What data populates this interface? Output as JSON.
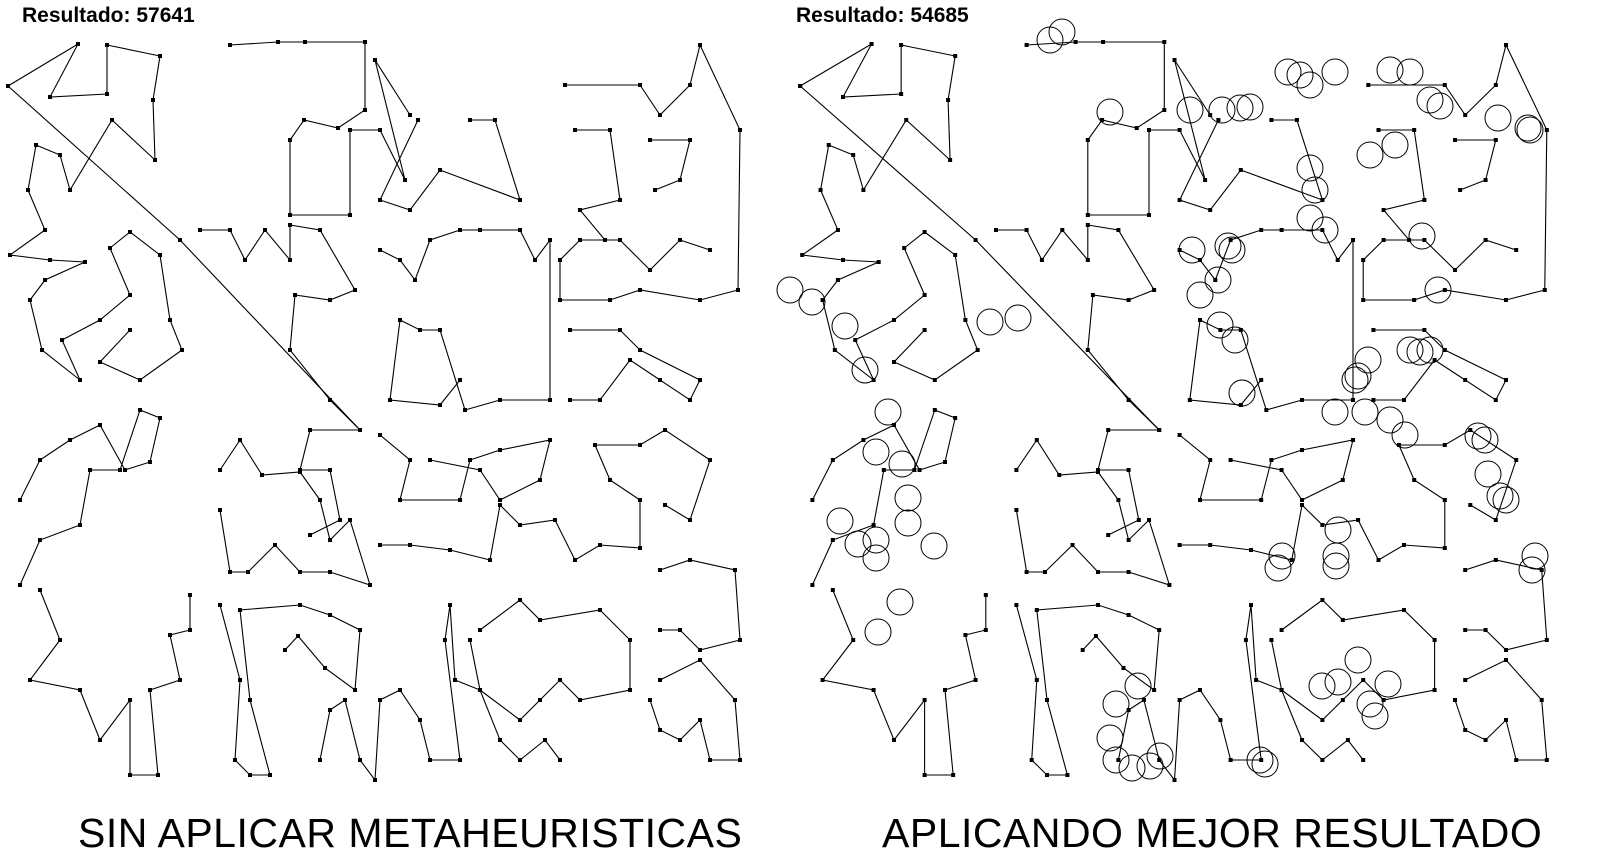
{
  "panels": {
    "left": {
      "result_label": "Resultado: 57641",
      "caption": "SIN APLICAR METAHEURISTICAS"
    },
    "right": {
      "result_label": "Resultado: 54685",
      "caption": "APLICANDO MEJOR RESULTADO"
    }
  },
  "colors": {
    "line": "#000000",
    "background": "#ffffff"
  }
}
